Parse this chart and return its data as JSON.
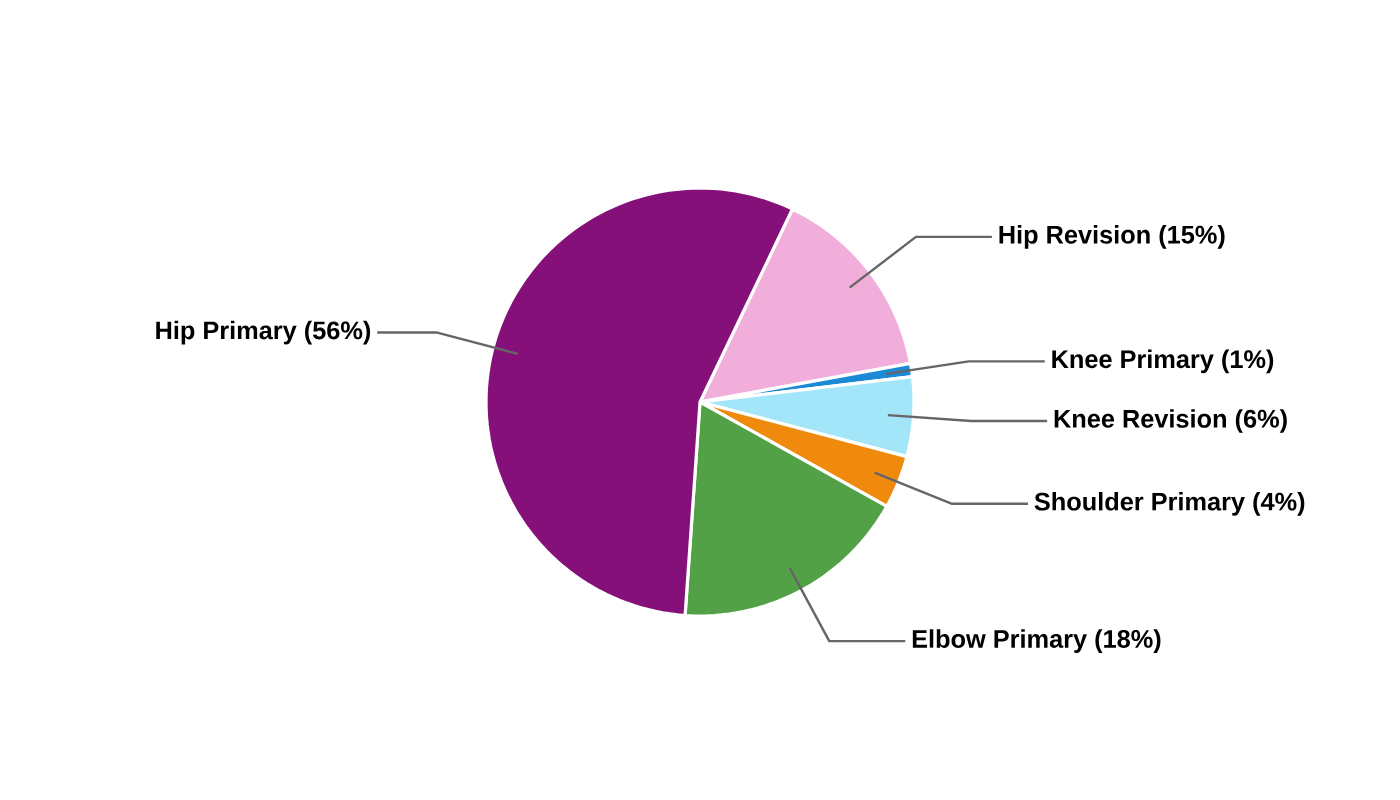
{
  "chart_data": {
    "type": "pie",
    "categories": [
      "Hip Revision (15%)",
      "Knee Primary (1%)",
      "Knee Revision (6%)",
      "Shoulder Primary (4%)",
      "Elbow Primary (18%)",
      "Hip Primary (56%)"
    ],
    "values": [
      15,
      1,
      6,
      4,
      18,
      56
    ],
    "colors": [
      "#f2aedb",
      "#1b8ad6",
      "#a3e6fa",
      "#f08a0c",
      "#52a147",
      "#86107a"
    ]
  }
}
